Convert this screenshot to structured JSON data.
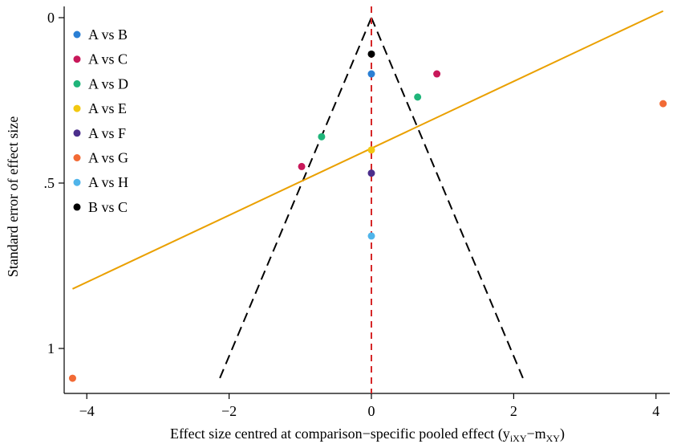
{
  "chart_data": {
    "type": "scatter",
    "title": "",
    "xlabel": "Effect size centred at comparison−specific pooled effect (y",
    "xlabel_sub1": "iXY",
    "xlabel_mid": "−m",
    "xlabel_sub2": "XY",
    "xlabel_end": ")",
    "ylabel": "Standard error of effect size",
    "xlim": [
      -4.3,
      4.3
    ],
    "ylim": [
      0,
      1.15
    ],
    "y_inverted": true,
    "x_ticks": [
      -4,
      -2,
      0,
      2,
      4
    ],
    "x_tick_labels": [
      "−4",
      "−2",
      "0",
      "2",
      "4"
    ],
    "y_ticks": [
      0,
      0.5,
      1
    ],
    "y_tick_labels": [
      "0",
      ".5",
      "1"
    ],
    "legend_position": "top-left",
    "series": [
      {
        "name": "A vs B",
        "color": "#2A7FD4",
        "points": [
          [
            0,
            0.17
          ]
        ]
      },
      {
        "name": "A vs C",
        "color": "#C8185A",
        "points": [
          [
            0.92,
            0.17
          ],
          [
            -0.98,
            0.45
          ]
        ]
      },
      {
        "name": "A vs D",
        "color": "#1FB57A",
        "points": [
          [
            0.65,
            0.24
          ],
          [
            -0.7,
            0.36
          ]
        ]
      },
      {
        "name": "A vs E",
        "color": "#F2C811",
        "points": [
          [
            0,
            0.4
          ]
        ]
      },
      {
        "name": "A vs F",
        "color": "#4B2E8C",
        "points": [
          [
            0,
            0.47
          ]
        ]
      },
      {
        "name": "A vs G",
        "color": "#F26A35",
        "points": [
          [
            4.1,
            0.26
          ],
          [
            -4.2,
            1.09
          ]
        ]
      },
      {
        "name": "A vs H",
        "color": "#4FB4EA",
        "points": [
          [
            0,
            0.66
          ]
        ]
      },
      {
        "name": "B vs C",
        "color": "#000000",
        "points": [
          [
            0,
            0.11
          ]
        ]
      }
    ],
    "lines": {
      "regression": {
        "color": "#EAA000",
        "points": [
          [
            -4.2,
            0.82
          ],
          [
            4.1,
            -0.02
          ]
        ]
      },
      "funnel": {
        "color": "#000000",
        "style": "dashed",
        "apex": [
          0,
          0
        ],
        "left_base": [
          -2.15,
          1.1
        ],
        "right_base": [
          2.15,
          1.1
        ]
      },
      "zero_line": {
        "color": "#D62728",
        "style": "dashed",
        "x": 0
      }
    }
  }
}
